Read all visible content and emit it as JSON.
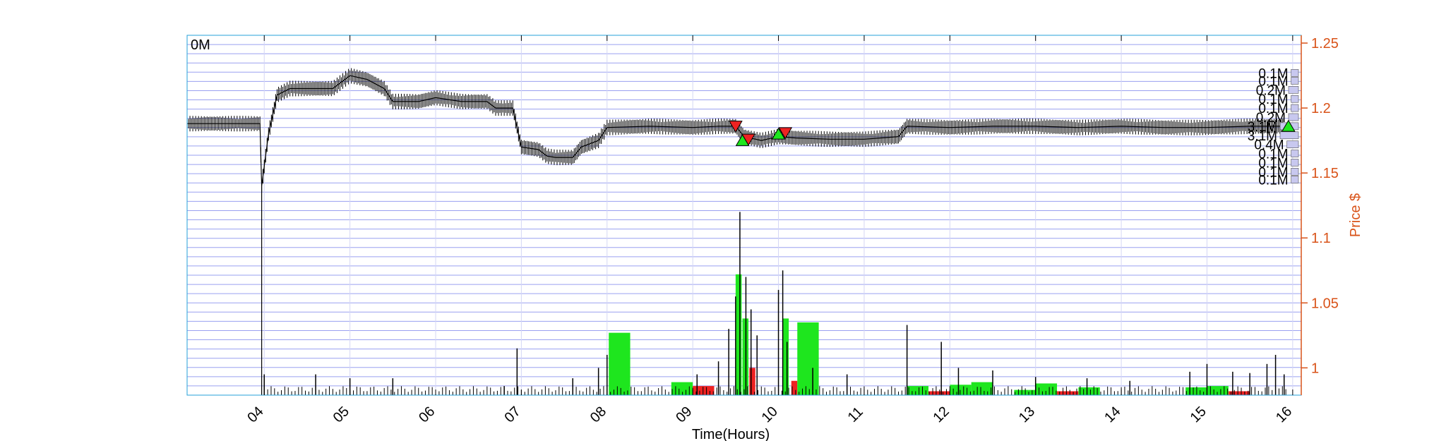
{
  "chart_data": {
    "type": "line",
    "title": "",
    "xlabel": "Time(Hours)",
    "ylabel": "Price $",
    "volume_corner_label": "0M",
    "x_ticks": [
      "04",
      "05",
      "06",
      "07",
      "08",
      "09",
      "10",
      "11",
      "12",
      "13",
      "14",
      "15",
      "16"
    ],
    "xlim": [
      3.1,
      16.1
    ],
    "y_ticks": [
      1.0,
      1.05,
      1.1,
      1.15,
      1.2,
      1.25
    ],
    "y_tick_labels": [
      "1",
      "1.05",
      "1.1",
      "1.15",
      "1.2",
      "1.25"
    ],
    "ylim": [
      0.979,
      1.256
    ],
    "grid_lines": 39,
    "colors": {
      "price_axis": "#d95319",
      "grid": "#9aa0f0",
      "buy": "#1ee61e",
      "sell": "#ee2222",
      "price": "#000000",
      "profile_bar": "#c8c8ef"
    },
    "price_series": [
      [
        3.1,
        1.188
      ],
      [
        3.95,
        1.188
      ],
      [
        3.97,
        1.14
      ],
      [
        4.0,
        1.155
      ],
      [
        4.05,
        1.18
      ],
      [
        4.1,
        1.195
      ],
      [
        4.15,
        1.21
      ],
      [
        4.3,
        1.215
      ],
      [
        4.6,
        1.215
      ],
      [
        4.8,
        1.215
      ],
      [
        5.0,
        1.225
      ],
      [
        5.2,
        1.222
      ],
      [
        5.4,
        1.215
      ],
      [
        5.5,
        1.205
      ],
      [
        5.8,
        1.205
      ],
      [
        6.0,
        1.208
      ],
      [
        6.3,
        1.205
      ],
      [
        6.6,
        1.205
      ],
      [
        6.7,
        1.2
      ],
      [
        6.9,
        1.2
      ],
      [
        6.95,
        1.185
      ],
      [
        7.0,
        1.17
      ],
      [
        7.2,
        1.168
      ],
      [
        7.3,
        1.163
      ],
      [
        7.4,
        1.162
      ],
      [
        7.6,
        1.162
      ],
      [
        7.7,
        1.17
      ],
      [
        7.9,
        1.175
      ],
      [
        8.0,
        1.185
      ],
      [
        8.5,
        1.186
      ],
      [
        9.0,
        1.185
      ],
      [
        9.3,
        1.186
      ],
      [
        9.5,
        1.186
      ],
      [
        9.6,
        1.178
      ],
      [
        9.8,
        1.175
      ],
      [
        10.0,
        1.178
      ],
      [
        10.2,
        1.177
      ],
      [
        10.6,
        1.176
      ],
      [
        11.0,
        1.176
      ],
      [
        11.4,
        1.178
      ],
      [
        11.5,
        1.186
      ],
      [
        12.0,
        1.185
      ],
      [
        12.5,
        1.186
      ],
      [
        13.0,
        1.186
      ],
      [
        13.5,
        1.185
      ],
      [
        14.0,
        1.186
      ],
      [
        14.5,
        1.185
      ],
      [
        15.0,
        1.185
      ],
      [
        15.5,
        1.186
      ],
      [
        15.9,
        1.186
      ]
    ],
    "volume_bars": [
      {
        "x": 8.02,
        "w": 0.25,
        "h": 1.027,
        "c": "buy"
      },
      {
        "x": 8.75,
        "w": 0.25,
        "h": 0.989,
        "c": "buy"
      },
      {
        "x": 9.0,
        "w": 0.25,
        "h": 0.986,
        "c": "sell"
      },
      {
        "x": 9.5,
        "w": 0.07,
        "h": 1.072,
        "c": "buy"
      },
      {
        "x": 9.58,
        "w": 0.07,
        "h": 1.038,
        "c": "buy"
      },
      {
        "x": 9.66,
        "w": 0.07,
        "h": 1.0,
        "c": "sell"
      },
      {
        "x": 10.05,
        "w": 0.07,
        "h": 1.038,
        "c": "buy"
      },
      {
        "x": 10.15,
        "w": 0.07,
        "h": 0.99,
        "c": "sell"
      },
      {
        "x": 10.22,
        "w": 0.25,
        "h": 1.035,
        "c": "buy"
      },
      {
        "x": 11.5,
        "w": 0.25,
        "h": 0.986,
        "c": "buy"
      },
      {
        "x": 11.75,
        "w": 0.25,
        "h": 0.982,
        "c": "sell"
      },
      {
        "x": 12.0,
        "w": 0.25,
        "h": 0.987,
        "c": "buy"
      },
      {
        "x": 12.25,
        "w": 0.25,
        "h": 0.989,
        "c": "buy"
      },
      {
        "x": 12.75,
        "w": 0.25,
        "h": 0.983,
        "c": "buy"
      },
      {
        "x": 13.0,
        "w": 0.25,
        "h": 0.988,
        "c": "buy"
      },
      {
        "x": 13.25,
        "w": 0.25,
        "h": 0.982,
        "c": "sell"
      },
      {
        "x": 13.5,
        "w": 0.25,
        "h": 0.985,
        "c": "buy"
      },
      {
        "x": 14.75,
        "w": 0.25,
        "h": 0.985,
        "c": "buy"
      },
      {
        "x": 15.0,
        "w": 0.25,
        "h": 0.986,
        "c": "buy"
      },
      {
        "x": 15.25,
        "w": 0.25,
        "h": 0.982,
        "c": "sell"
      }
    ],
    "volume_spikes": [
      {
        "x": 4.0,
        "h": 0.995
      },
      {
        "x": 4.6,
        "h": 0.995
      },
      {
        "x": 5.0,
        "h": 0.992
      },
      {
        "x": 5.5,
        "h": 0.992
      },
      {
        "x": 6.8,
        "h": 0.986
      },
      {
        "x": 6.95,
        "h": 1.015
      },
      {
        "x": 7.6,
        "h": 0.992
      },
      {
        "x": 7.9,
        "h": 1.0
      },
      {
        "x": 8.0,
        "h": 1.01
      },
      {
        "x": 9.05,
        "h": 0.995
      },
      {
        "x": 9.3,
        "h": 1.005
      },
      {
        "x": 9.42,
        "h": 1.03
      },
      {
        "x": 9.5,
        "h": 1.055
      },
      {
        "x": 9.55,
        "h": 1.12
      },
      {
        "x": 9.62,
        "h": 1.07
      },
      {
        "x": 9.68,
        "h": 1.045
      },
      {
        "x": 9.75,
        "h": 1.025
      },
      {
        "x": 10.0,
        "h": 1.06
      },
      {
        "x": 10.05,
        "h": 1.075
      },
      {
        "x": 10.1,
        "h": 1.02
      },
      {
        "x": 10.4,
        "h": 1.0
      },
      {
        "x": 10.8,
        "h": 0.995
      },
      {
        "x": 11.5,
        "h": 1.033
      },
      {
        "x": 11.9,
        "h": 1.02
      },
      {
        "x": 12.1,
        "h": 1.0
      },
      {
        "x": 12.5,
        "h": 0.998
      },
      {
        "x": 13.0,
        "h": 0.993
      },
      {
        "x": 13.6,
        "h": 0.992
      },
      {
        "x": 14.1,
        "h": 0.99
      },
      {
        "x": 14.8,
        "h": 0.997
      },
      {
        "x": 15.0,
        "h": 1.003
      },
      {
        "x": 15.3,
        "h": 0.997
      },
      {
        "x": 15.5,
        "h": 0.996
      },
      {
        "x": 15.7,
        "h": 1.003
      },
      {
        "x": 15.8,
        "h": 1.01
      },
      {
        "x": 15.9,
        "h": 0.995
      }
    ],
    "trade_markers": [
      {
        "x": 9.5,
        "y": 1.186,
        "type": "sell"
      },
      {
        "x": 9.58,
        "y": 1.175,
        "type": "buy"
      },
      {
        "x": 9.65,
        "y": 1.176,
        "type": "sell"
      },
      {
        "x": 10.0,
        "y": 1.18,
        "type": "buy"
      },
      {
        "x": 10.08,
        "y": 1.181,
        "type": "sell"
      },
      {
        "x": 15.95,
        "y": 1.186,
        "type": "buy"
      }
    ],
    "volume_profile": [
      {
        "price": 1.227,
        "label": "0.1M",
        "len": 0.35
      },
      {
        "price": 1.221,
        "label": "0.1M",
        "len": 0.35
      },
      {
        "price": 1.214,
        "label": "0.2M",
        "len": 0.5
      },
      {
        "price": 1.207,
        "label": "0.1M",
        "len": 0.35
      },
      {
        "price": 1.2,
        "label": "0.1M",
        "len": 0.35
      },
      {
        "price": 1.193,
        "label": "0.2M",
        "len": 0.5
      },
      {
        "price": 1.186,
        "label": "3.1M",
        "len": 1.0
      },
      {
        "price": 1.179,
        "label": "3.1M",
        "len": 1.0
      },
      {
        "price": 1.172,
        "label": "0.4M",
        "len": 0.6
      },
      {
        "price": 1.165,
        "label": "0.1M",
        "len": 0.35
      },
      {
        "price": 1.158,
        "label": "0.1M",
        "len": 0.35
      },
      {
        "price": 1.151,
        "label": "0.1M",
        "len": 0.35
      },
      {
        "price": 1.145,
        "label": "0.1M",
        "len": 0.35
      }
    ]
  }
}
